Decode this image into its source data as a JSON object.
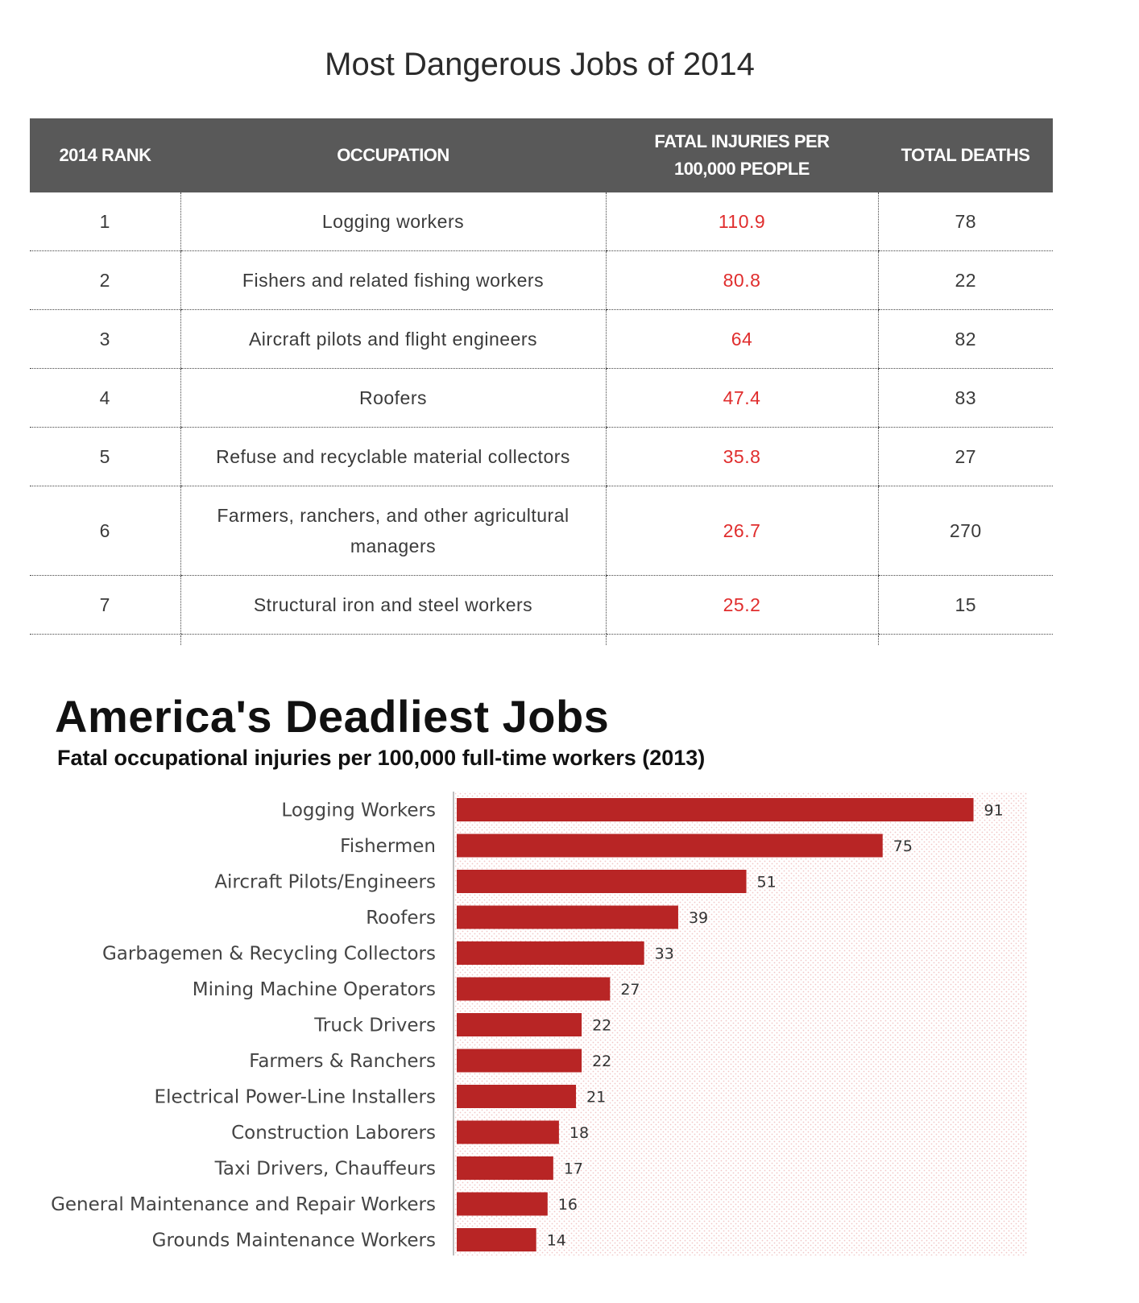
{
  "table": {
    "title": "Most Dangerous Jobs of 2014",
    "headers": {
      "rank": "2014 RANK",
      "occupation": "OCCUPATION",
      "rate_line1": "FATAL INJURIES PER",
      "rate_line2": "100,000 PEOPLE",
      "deaths": "TOTAL DEATHS"
    },
    "rows": [
      {
        "rank": "1",
        "occupation": "Logging workers",
        "rate": "110.9",
        "deaths": "78"
      },
      {
        "rank": "2",
        "occupation": "Fishers and related fishing workers",
        "rate": "80.8",
        "deaths": "22"
      },
      {
        "rank": "3",
        "occupation": "Aircraft pilots and flight engineers",
        "rate": "64",
        "deaths": "82"
      },
      {
        "rank": "4",
        "occupation": "Roofers",
        "rate": "47.4",
        "deaths": "83"
      },
      {
        "rank": "5",
        "occupation": "Refuse and recyclable material collectors",
        "rate": "35.8",
        "deaths": "27"
      },
      {
        "rank": "6",
        "occupation": "Farmers, ranchers, and other agricultural managers",
        "rate": "26.7",
        "deaths": "270"
      },
      {
        "rank": "7",
        "occupation": "Structural iron and steel workers",
        "rate": "25.2",
        "deaths": "15"
      }
    ],
    "rate_color": "#e02d2d",
    "header_bg": "#595959"
  },
  "chart_data": {
    "type": "bar",
    "orientation": "horizontal",
    "title": "America's Deadliest Jobs",
    "subtitle": "Fatal occupational injuries per 100,000 full-time workers (2013)",
    "categories": [
      "Logging Workers",
      "Fishermen",
      "Aircraft Pilots/Engineers",
      "Roofers",
      "Garbagemen & Recycling Collectors",
      "Mining Machine Operators",
      "Truck Drivers",
      "Farmers & Ranchers",
      "Electrical Power-Line Installers",
      "Construction Laborers",
      "Taxi Drivers, Chauffeurs",
      "General Maintenance and Repair Workers",
      "Grounds Maintenance Workers"
    ],
    "values": [
      91,
      75,
      51,
      39,
      33,
      27,
      22,
      22,
      21,
      18,
      17,
      16,
      14
    ],
    "xlim": [
      0,
      100
    ],
    "grid": false,
    "bar_color": "#b82525"
  }
}
